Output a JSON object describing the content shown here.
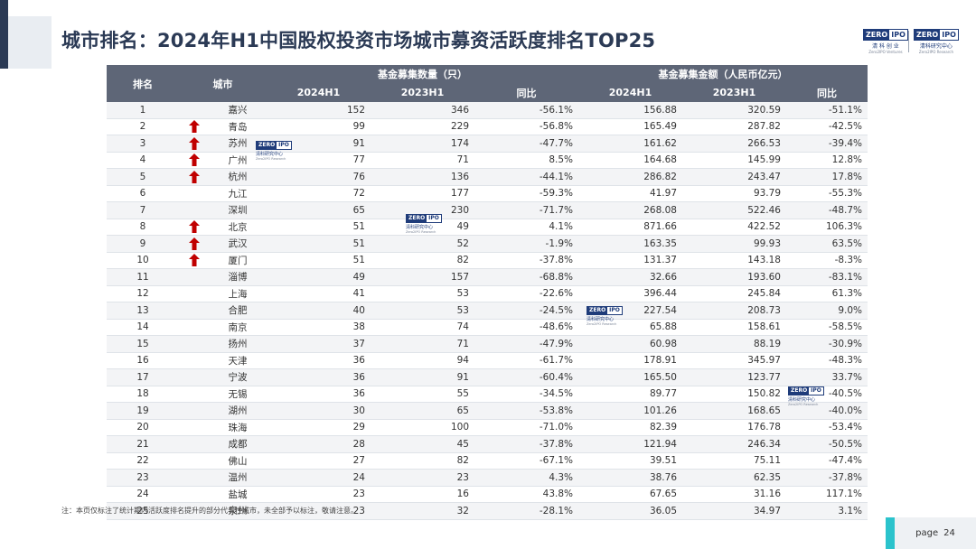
{
  "title": "城市排名：2024年H1中国股权投资市场城市募资活跃度排名TOP25",
  "logos": {
    "brand_a": "ZERO",
    "brand_b": "IPO",
    "left_cn": "清 科 创 业",
    "left_en": "Zero2IPO Ventures",
    "right_cn": "清科研究中心",
    "right_en": "Zero2IPO Research",
    "watermark_cn": "清科研究中心",
    "watermark_en": "Zero2IPO Research"
  },
  "colors": {
    "header_bg": "#5e6677",
    "title": "#2b3a55",
    "arrow": "#c00000",
    "accent": "#2bc3cc"
  },
  "table": {
    "headers": {
      "rank": "排名",
      "city": "城市",
      "count_group": "基金募集数量（只）",
      "amount_group": "基金募集金额（人民币亿元）",
      "y2024": "2024H1",
      "y2023": "2023H1",
      "yoy": "同比"
    },
    "rows": [
      {
        "rank": "1",
        "up": false,
        "city": "嘉兴",
        "c24": "152",
        "c23": "346",
        "cy": "-56.1%",
        "a24": "156.88",
        "a23": "320.59",
        "ay": "-51.1%"
      },
      {
        "rank": "2",
        "up": true,
        "city": "青岛",
        "c24": "99",
        "c23": "229",
        "cy": "-56.8%",
        "a24": "165.49",
        "a23": "287.82",
        "ay": "-42.5%"
      },
      {
        "rank": "3",
        "up": true,
        "city": "苏州",
        "c24": "91",
        "c23": "174",
        "cy": "-47.7%",
        "a24": "161.62",
        "a23": "266.53",
        "ay": "-39.4%"
      },
      {
        "rank": "4",
        "up": true,
        "city": "广州",
        "c24": "77",
        "c23": "71",
        "cy": "8.5%",
        "a24": "164.68",
        "a23": "145.99",
        "ay": "12.8%"
      },
      {
        "rank": "5",
        "up": true,
        "city": "杭州",
        "c24": "76",
        "c23": "136",
        "cy": "-44.1%",
        "a24": "286.82",
        "a23": "243.47",
        "ay": "17.8%"
      },
      {
        "rank": "6",
        "up": false,
        "city": "九江",
        "c24": "72",
        "c23": "177",
        "cy": "-59.3%",
        "a24": "41.97",
        "a23": "93.79",
        "ay": "-55.3%"
      },
      {
        "rank": "7",
        "up": false,
        "city": "深圳",
        "c24": "65",
        "c23": "230",
        "cy": "-71.7%",
        "a24": "268.08",
        "a23": "522.46",
        "ay": "-48.7%"
      },
      {
        "rank": "8",
        "up": true,
        "city": "北京",
        "c24": "51",
        "c23": "49",
        "cy": "4.1%",
        "a24": "871.66",
        "a23": "422.52",
        "ay": "106.3%"
      },
      {
        "rank": "9",
        "up": true,
        "city": "武汉",
        "c24": "51",
        "c23": "52",
        "cy": "-1.9%",
        "a24": "163.35",
        "a23": "99.93",
        "ay": "63.5%"
      },
      {
        "rank": "10",
        "up": true,
        "city": "厦门",
        "c24": "51",
        "c23": "82",
        "cy": "-37.8%",
        "a24": "131.37",
        "a23": "143.18",
        "ay": "-8.3%"
      },
      {
        "rank": "11",
        "up": false,
        "city": "淄博",
        "c24": "49",
        "c23": "157",
        "cy": "-68.8%",
        "a24": "32.66",
        "a23": "193.60",
        "ay": "-83.1%"
      },
      {
        "rank": "12",
        "up": false,
        "city": "上海",
        "c24": "41",
        "c23": "53",
        "cy": "-22.6%",
        "a24": "396.44",
        "a23": "245.84",
        "ay": "61.3%"
      },
      {
        "rank": "13",
        "up": false,
        "city": "合肥",
        "c24": "40",
        "c23": "53",
        "cy": "-24.5%",
        "a24": "227.54",
        "a23": "208.73",
        "ay": "9.0%"
      },
      {
        "rank": "14",
        "up": false,
        "city": "南京",
        "c24": "38",
        "c23": "74",
        "cy": "-48.6%",
        "a24": "65.88",
        "a23": "158.61",
        "ay": "-58.5%"
      },
      {
        "rank": "15",
        "up": false,
        "city": "扬州",
        "c24": "37",
        "c23": "71",
        "cy": "-47.9%",
        "a24": "60.98",
        "a23": "88.19",
        "ay": "-30.9%"
      },
      {
        "rank": "16",
        "up": false,
        "city": "天津",
        "c24": "36",
        "c23": "94",
        "cy": "-61.7%",
        "a24": "178.91",
        "a23": "345.97",
        "ay": "-48.3%"
      },
      {
        "rank": "17",
        "up": false,
        "city": "宁波",
        "c24": "36",
        "c23": "91",
        "cy": "-60.4%",
        "a24": "165.50",
        "a23": "123.77",
        "ay": "33.7%"
      },
      {
        "rank": "18",
        "up": false,
        "city": "无锡",
        "c24": "36",
        "c23": "55",
        "cy": "-34.5%",
        "a24": "89.77",
        "a23": "150.82",
        "ay": "-40.5%"
      },
      {
        "rank": "19",
        "up": false,
        "city": "湖州",
        "c24": "30",
        "c23": "65",
        "cy": "-53.8%",
        "a24": "101.26",
        "a23": "168.65",
        "ay": "-40.0%"
      },
      {
        "rank": "20",
        "up": false,
        "city": "珠海",
        "c24": "29",
        "c23": "100",
        "cy": "-71.0%",
        "a24": "82.39",
        "a23": "176.78",
        "ay": "-53.4%"
      },
      {
        "rank": "21",
        "up": false,
        "city": "成都",
        "c24": "28",
        "c23": "45",
        "cy": "-37.8%",
        "a24": "121.94",
        "a23": "246.34",
        "ay": "-50.5%"
      },
      {
        "rank": "22",
        "up": false,
        "city": "佛山",
        "c24": "27",
        "c23": "82",
        "cy": "-67.1%",
        "a24": "39.51",
        "a23": "75.11",
        "ay": "-47.4%"
      },
      {
        "rank": "23",
        "up": false,
        "city": "温州",
        "c24": "24",
        "c23": "23",
        "cy": "4.3%",
        "a24": "38.76",
        "a23": "62.35",
        "ay": "-37.8%"
      },
      {
        "rank": "24",
        "up": false,
        "city": "盐城",
        "c24": "23",
        "c23": "16",
        "cy": "43.8%",
        "a24": "67.65",
        "a23": "31.16",
        "ay": "117.1%"
      },
      {
        "rank": "25",
        "up": false,
        "city": "泉州",
        "c24": "23",
        "c23": "32",
        "cy": "-28.1%",
        "a24": "36.05",
        "a23": "34.97",
        "ay": "3.1%"
      }
    ]
  },
  "note": "注：本页仅标注了统计期内活跃度排名提升的部分代表性城市，未全部予以标注，敬请注意。",
  "page": {
    "label": "page",
    "number": "24"
  }
}
